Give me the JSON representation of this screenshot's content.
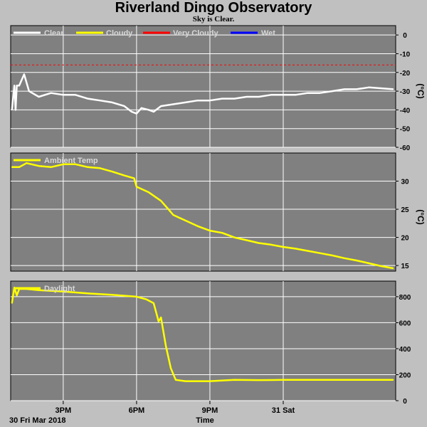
{
  "title": "Riverland Dingo Observatory",
  "subtitle": "Sky is Clear.",
  "colors": {
    "plot_bg": "#808080",
    "page_bg": "#c0c0c0",
    "grid": "#ffffff",
    "clear": "#ffffff",
    "cloudy": "#ffff00",
    "very_cloudy": "#ff0000",
    "wet": "#0000ff",
    "legend_text": "#d8d8d8"
  },
  "chart_data": [
    {
      "type": "line",
      "title": "",
      "ylabel": "(°C)",
      "ylim": [
        -60,
        5
      ],
      "yticks": [
        0,
        -10,
        -20,
        -30,
        -40,
        -50,
        -60
      ],
      "legend_placement": "top-left",
      "legend": [
        "Clear",
        "Cloudy",
        "Very Cloudy",
        "Wet"
      ],
      "threshold": {
        "name": "Very Cloudy",
        "value": -16
      },
      "series": [
        {
          "name": "Clear",
          "color": "#ffffff",
          "x": [
            12.9,
            13.0,
            13.05,
            13.1,
            13.2,
            13.4,
            13.6,
            14.0,
            14.5,
            15.0,
            15.5,
            16.0,
            16.5,
            17.0,
            17.5,
            17.8,
            18.0,
            18.2,
            18.5,
            18.7,
            19.0,
            19.5,
            20.0,
            20.5,
            21.0,
            21.5,
            22.0,
            22.5,
            23.0,
            23.5,
            24.0,
            24.5,
            25.0,
            25.5,
            26.0,
            26.5,
            27.0,
            27.5,
            28.5
          ],
          "y": [
            -40,
            -27,
            -40,
            -27,
            -27,
            -21,
            -30,
            -33,
            -31,
            -32,
            -32,
            -34,
            -35,
            -36,
            -38,
            -41,
            -42,
            -39,
            -40,
            -41,
            -38,
            -37,
            -36,
            -35,
            -35,
            -34,
            -34,
            -33,
            -33,
            -32,
            -32,
            -32,
            -31,
            -31,
            -30,
            -29,
            -29,
            -28,
            -29
          ]
        }
      ]
    },
    {
      "type": "line",
      "title": "",
      "ylabel": "(°C)",
      "ylim": [
        14,
        35
      ],
      "yticks": [
        30,
        25,
        20,
        15
      ],
      "legend_placement": "top-left",
      "legend": [
        "Ambient Temp"
      ],
      "series": [
        {
          "name": "Ambient Temp",
          "color": "#ffff00",
          "x": [
            12.9,
            13.2,
            13.5,
            14.0,
            14.5,
            15.0,
            15.5,
            16.0,
            16.5,
            17.0,
            17.5,
            17.9,
            18.0,
            18.5,
            19.0,
            19.3,
            19.5,
            20.0,
            20.5,
            21.0,
            21.5,
            22.0,
            22.5,
            23.0,
            23.5,
            24.0,
            24.5,
            25.0,
            25.5,
            26.0,
            26.5,
            27.0,
            27.5,
            28.0,
            28.5
          ],
          "y": [
            32.5,
            32.5,
            33.2,
            32.7,
            32.5,
            33.0,
            33.0,
            32.5,
            32.3,
            31.7,
            31.0,
            30.5,
            29.0,
            28.0,
            26.5,
            25.0,
            24.0,
            23.0,
            22.0,
            21.2,
            20.8,
            20.0,
            19.5,
            19.0,
            18.7,
            18.3,
            18.0,
            17.6,
            17.2,
            16.8,
            16.3,
            15.9,
            15.4,
            14.9,
            14.5
          ]
        }
      ]
    },
    {
      "type": "line",
      "title": "",
      "ylabel": "",
      "ylim": [
        0,
        920
      ],
      "yticks": [
        800,
        600,
        400,
        200,
        0
      ],
      "legend_placement": "top-left",
      "legend": [
        "Daylight"
      ],
      "xlabel": "Time",
      "xticks": [
        {
          "x": 15,
          "label": "3PM"
        },
        {
          "x": 18,
          "label": "6PM"
        },
        {
          "x": 21,
          "label": "9PM"
        },
        {
          "x": 24,
          "label": "31 Sat"
        }
      ],
      "xlim": [
        12.85,
        28.6
      ],
      "start_label": "30 Fri Mar 2018",
      "series": [
        {
          "name": "Daylight",
          "color": "#ffff00",
          "x": [
            12.9,
            13.0,
            13.1,
            13.2,
            13.5,
            14.0,
            15.0,
            16.0,
            17.0,
            18.0,
            18.4,
            18.7,
            18.8,
            18.9,
            19.0,
            19.2,
            19.4,
            19.6,
            20.0,
            21.0,
            22.0,
            23.0,
            24.0,
            25.0,
            26.0,
            27.0,
            28.5
          ],
          "y": [
            750,
            870,
            810,
            860,
            860,
            850,
            840,
            825,
            815,
            800,
            780,
            750,
            680,
            610,
            640,
            420,
            250,
            160,
            150,
            150,
            160,
            158,
            160,
            160,
            160,
            160,
            160
          ]
        }
      ]
    }
  ]
}
